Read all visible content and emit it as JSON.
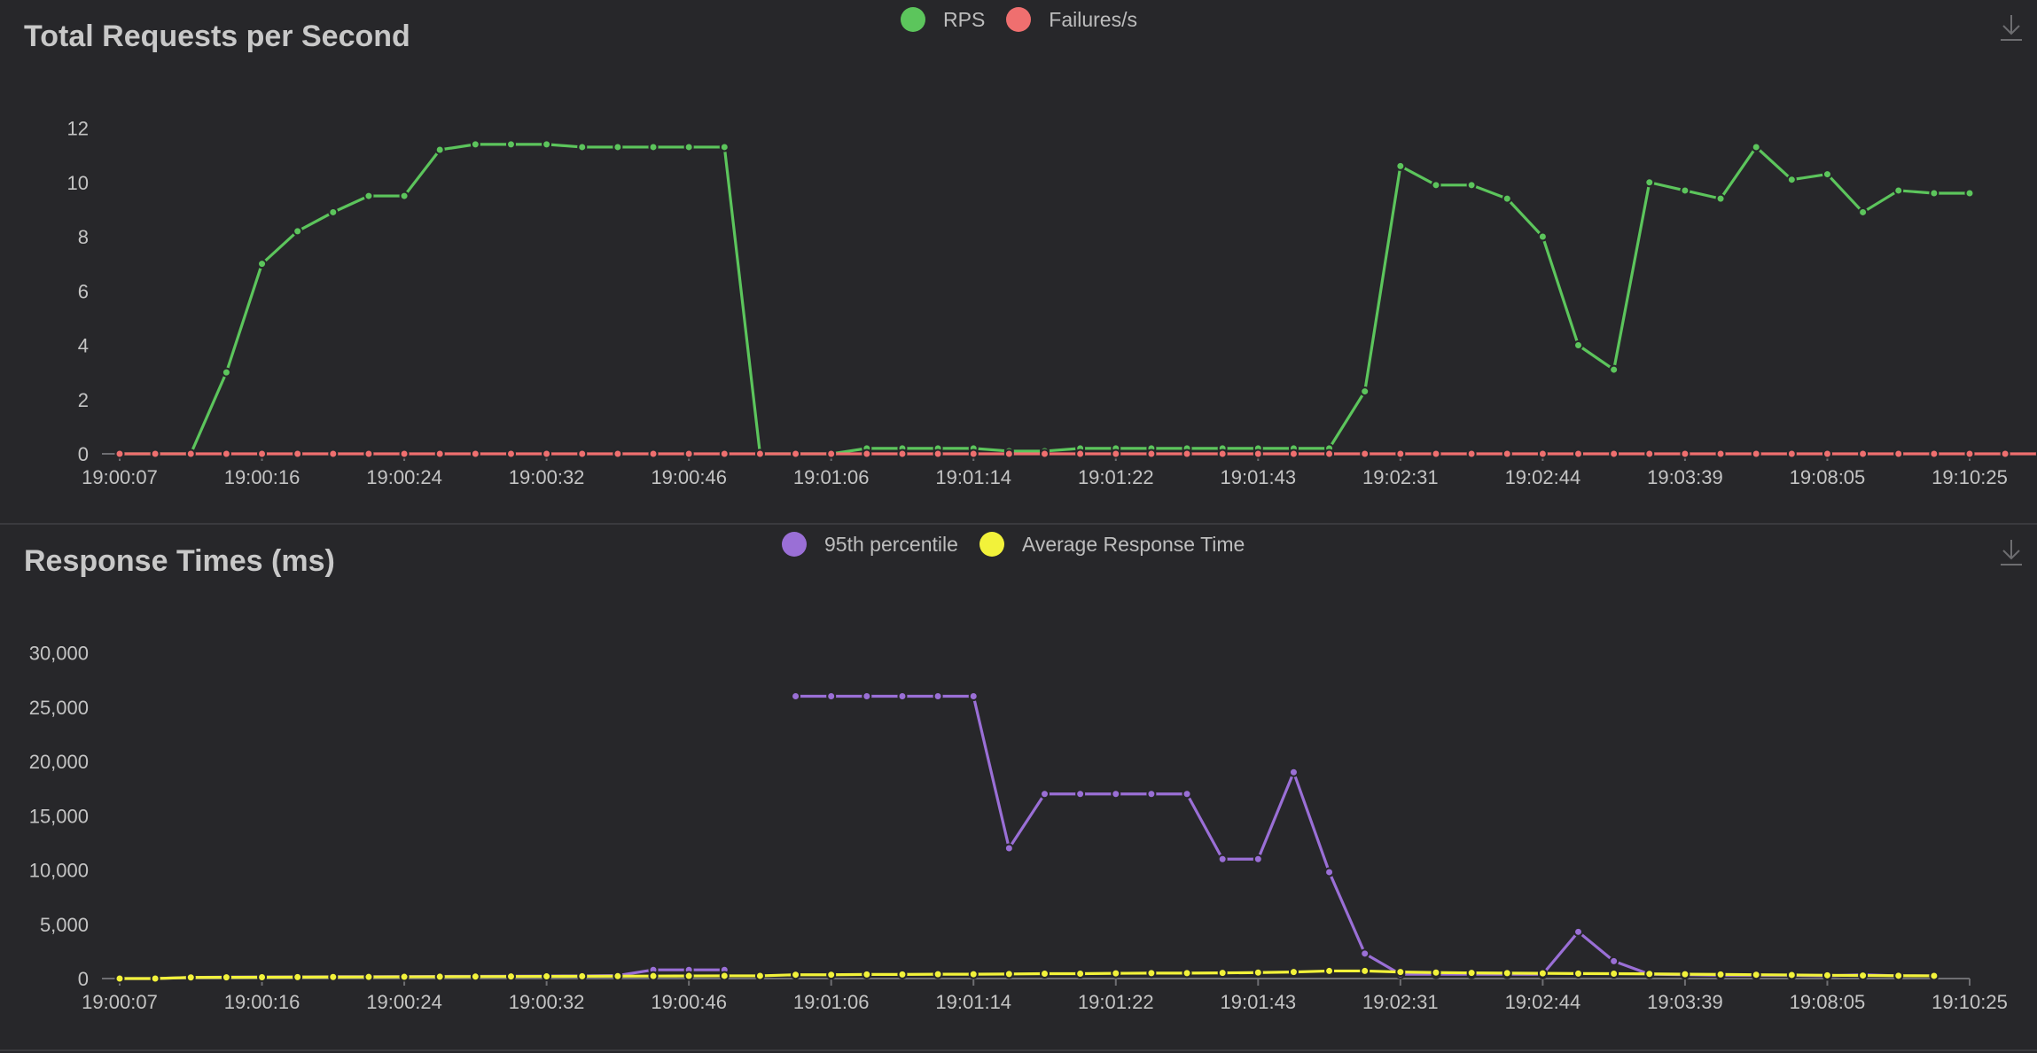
{
  "chart_data": [
    {
      "type": "line",
      "title": "Total Requests per Second",
      "legend": [
        "RPS",
        "Failures/s"
      ],
      "legend_position": "top-center",
      "x_tick_labels": [
        "19:00:07",
        "19:00:16",
        "19:00:24",
        "19:00:32",
        "19:00:46",
        "19:01:06",
        "19:01:14",
        "19:01:22",
        "19:01:43",
        "19:02:31",
        "19:02:44",
        "19:03:39",
        "19:08:05",
        "19:10:25"
      ],
      "y_ticks": [
        "0",
        "2",
        "4",
        "6",
        "8",
        "10",
        "12"
      ],
      "ylim": [
        0,
        12.8
      ],
      "series": [
        {
          "name": "RPS",
          "color": "#5cc55c",
          "values": [
            0,
            0,
            0,
            3,
            7,
            8.2,
            8.9,
            9.5,
            9.5,
            11.2,
            11.4,
            11.4,
            11.4,
            11.3,
            11.3,
            11.3,
            11.3,
            11.3,
            0,
            0,
            0,
            0.2,
            0.2,
            0.2,
            0.2,
            0.1,
            0.1,
            0.2,
            0.2,
            0.2,
            0.2,
            0.2,
            0.2,
            0.2,
            0.2,
            2.3,
            10.6,
            9.9,
            9.9,
            9.4,
            8,
            4,
            3.1,
            10,
            9.7,
            9.4,
            11.3,
            10.1,
            10.3,
            8.9,
            9.7,
            9.6,
            9.6
          ]
        },
        {
          "name": "Failures/s",
          "color": "#ef6f6f",
          "values": [
            0,
            0,
            0,
            0,
            0,
            0,
            0,
            0,
            0,
            0,
            0,
            0,
            0,
            0,
            0,
            0,
            0,
            0,
            0,
            0,
            0,
            0,
            0,
            0,
            0,
            0,
            0,
            0,
            0,
            0,
            0,
            0,
            0,
            0,
            0,
            0,
            0,
            0,
            0,
            0,
            0,
            0,
            0,
            0,
            0,
            0,
            0,
            0,
            0,
            0,
            0,
            0,
            0,
            0,
            0
          ]
        }
      ]
    },
    {
      "type": "line",
      "title": "Response Times (ms)",
      "legend": [
        "95th percentile",
        "Average Response Time"
      ],
      "legend_position": "top-center",
      "x_tick_labels": [
        "19:00:07",
        "19:00:16",
        "19:00:24",
        "19:00:32",
        "19:00:46",
        "19:01:06",
        "19:01:14",
        "19:01:22",
        "19:01:43",
        "19:02:31",
        "19:02:44",
        "19:03:39",
        "19:08:05",
        "19:10:25"
      ],
      "y_ticks": [
        "0",
        "5,000",
        "10,000",
        "15,000",
        "20,000",
        "25,000",
        "30,000"
      ],
      "ylim": [
        0,
        32000
      ],
      "series": [
        {
          "name": "95th percentile",
          "color": "#9a6fd6",
          "values": [
            0,
            0,
            100,
            130,
            150,
            160,
            170,
            180,
            190,
            200,
            210,
            220,
            230,
            240,
            280,
            800,
            800,
            800,
            null,
            26000,
            26000,
            26000,
            26000,
            26000,
            26000,
            12000,
            17000,
            17000,
            17000,
            17000,
            17000,
            11000,
            11000,
            19000,
            9800,
            2300,
            400,
            400,
            400,
            400,
            400,
            4300,
            1600,
            400,
            350,
            300,
            300,
            300,
            250,
            350,
            250,
            250
          ]
        },
        {
          "name": "Average Response Time",
          "color": "#f2f23a",
          "values": [
            0,
            0,
            100,
            110,
            120,
            130,
            140,
            150,
            160,
            170,
            180,
            190,
            200,
            210,
            220,
            230,
            240,
            250,
            250,
            350,
            350,
            380,
            380,
            400,
            400,
            420,
            450,
            450,
            480,
            500,
            500,
            520,
            550,
            600,
            700,
            700,
            600,
            550,
            520,
            500,
            480,
            460,
            450,
            430,
            400,
            380,
            350,
            330,
            300,
            280,
            260,
            250
          ]
        }
      ]
    }
  ]
}
